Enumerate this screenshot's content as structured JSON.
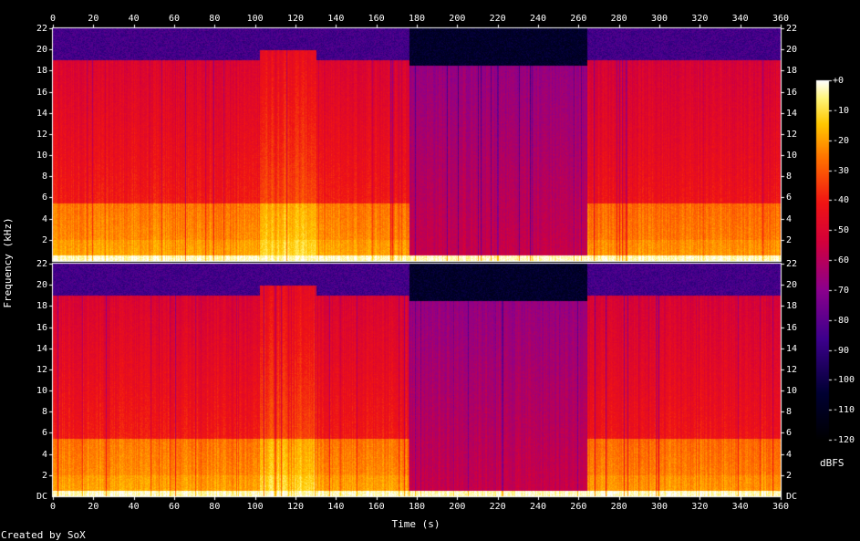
{
  "chart_data": {
    "type": "heatmap",
    "title": "",
    "xlabel": "Time (s)",
    "ylabel": "Frequency (kHz)",
    "credit": "Created by SoX",
    "xlim": [
      0,
      360
    ],
    "ylim": [
      0,
      22
    ],
    "x_ticks": [
      0,
      20,
      40,
      60,
      80,
      100,
      120,
      140,
      160,
      180,
      200,
      220,
      240,
      260,
      280,
      300,
      320,
      340,
      360
    ],
    "y_ticks": [
      2,
      4,
      6,
      8,
      10,
      12,
      14,
      16,
      18,
      20,
      22
    ],
    "y_zero_label": "DC",
    "channels": 2,
    "colorbar": {
      "label": "dBFS",
      "ticks": [
        "+0",
        "-10",
        "-20",
        "-30",
        "-40",
        "-50",
        "-60",
        "-70",
        "-80",
        "-90",
        "-100",
        "-110",
        "-120"
      ],
      "range": [
        -120,
        0
      ]
    },
    "segments": [
      {
        "x": [
          0,
          102
        ],
        "cutoff_khz": 19,
        "energy": 0.82
      },
      {
        "x": [
          102,
          130
        ],
        "cutoff_khz": 20,
        "energy": 0.9
      },
      {
        "x": [
          130,
          176
        ],
        "cutoff_khz": 19,
        "energy": 0.82
      },
      {
        "x": [
          176,
          264
        ],
        "cutoff_khz": 18.5,
        "energy": 0.62
      },
      {
        "x": [
          264,
          360
        ],
        "cutoff_khz": 19,
        "energy": 0.8
      }
    ]
  }
}
